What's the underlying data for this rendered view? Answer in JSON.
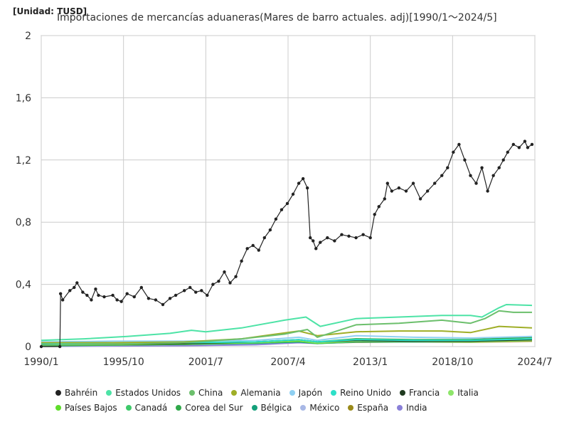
{
  "unit_label": "[Unidad: TUSD]",
  "title": "Importaciones de mercancías aduaneras(Mares de barro actuales. adj)[1990/1～2024/5]",
  "chart_data": {
    "type": "line",
    "title": "Importaciones de mercancías aduaneras(Mares de barro actuales. adj)[1990/1～2024/5]",
    "unit": "[Unidad: TUSD]",
    "ylim": [
      0,
      2
    ],
    "y_ticks": [
      "0",
      "0,4",
      "0,8",
      "1,2",
      "1,6",
      "2"
    ],
    "y_tick_values": [
      0,
      0.4,
      0.8,
      1.2,
      1.6,
      2
    ],
    "x_range": [
      1990.0,
      2024.5
    ],
    "x_ticks": [
      "1990/1",
      "1995/10",
      "2001/7",
      "2007/4",
      "2013/1",
      "2018/10",
      "2024/7"
    ],
    "x_tick_values": [
      1990.0,
      1995.75,
      2001.5,
      2007.25,
      2013.0,
      2018.75,
      2024.5
    ],
    "grid": true,
    "legend_position": "bottom",
    "series": [
      {
        "name": "Bahréin",
        "color": "#222222",
        "markers": true,
        "x": [
          1990.0,
          1991.3,
          1991.35,
          1991.5,
          1992.0,
          1992.3,
          1992.5,
          1992.9,
          1993.2,
          1993.5,
          1993.8,
          1994.0,
          1994.4,
          1995.0,
          1995.3,
          1995.6,
          1996.0,
          1996.5,
          1997.0,
          1997.5,
          1998.0,
          1998.5,
          1999.0,
          1999.4,
          2000.0,
          2000.4,
          2000.8,
          2001.2,
          2001.6,
          2002.0,
          2002.4,
          2002.8,
          2003.2,
          2003.6,
          2004.0,
          2004.4,
          2004.8,
          2005.2,
          2005.6,
          2006.0,
          2006.4,
          2006.8,
          2007.2,
          2007.6,
          2008.0,
          2008.3,
          2008.6,
          2008.8,
          2009.0,
          2009.2,
          2009.5,
          2010.0,
          2010.5,
          2011.0,
          2011.5,
          2012.0,
          2012.5,
          2013.0,
          2013.3,
          2013.6,
          2014.0,
          2014.2,
          2014.5,
          2015.0,
          2015.5,
          2016.0,
          2016.5,
          2017.0,
          2017.5,
          2018.0,
          2018.4,
          2018.8,
          2019.2,
          2019.6,
          2020.0,
          2020.4,
          2020.8,
          2021.2,
          2021.6,
          2022.0,
          2022.3,
          2022.6,
          2023.0,
          2023.4,
          2023.8,
          2024.0,
          2024.3
        ],
        "y": [
          0.0,
          0.0,
          0.34,
          0.3,
          0.36,
          0.38,
          0.41,
          0.35,
          0.33,
          0.3,
          0.37,
          0.33,
          0.32,
          0.33,
          0.3,
          0.29,
          0.34,
          0.32,
          0.38,
          0.31,
          0.3,
          0.27,
          0.31,
          0.33,
          0.36,
          0.38,
          0.35,
          0.36,
          0.33,
          0.4,
          0.42,
          0.48,
          0.41,
          0.45,
          0.55,
          0.63,
          0.65,
          0.62,
          0.7,
          0.75,
          0.82,
          0.88,
          0.92,
          0.98,
          1.05,
          1.08,
          1.02,
          0.7,
          0.68,
          0.63,
          0.67,
          0.7,
          0.68,
          0.72,
          0.71,
          0.7,
          0.72,
          0.7,
          0.85,
          0.9,
          0.95,
          1.05,
          1.0,
          1.02,
          1.0,
          1.05,
          0.95,
          1.0,
          1.05,
          1.1,
          1.15,
          1.25,
          1.3,
          1.2,
          1.1,
          1.05,
          1.15,
          1.0,
          1.1,
          1.15,
          1.2,
          1.25,
          1.3,
          1.28,
          1.32,
          1.28,
          1.3
        ]
      },
      {
        "name": "Estados Unidos",
        "color": "#4de3a6",
        "markers": false,
        "x": [
          1990.0,
          1993.0,
          1996.0,
          1999.0,
          2000.5,
          2001.5,
          2004.0,
          2007.0,
          2008.5,
          2009.5,
          2012.0,
          2015.0,
          2018.0,
          2020.0,
          2020.8,
          2022.0,
          2022.5,
          2024.3
        ],
        "y": [
          0.04,
          0.05,
          0.065,
          0.085,
          0.105,
          0.095,
          0.12,
          0.17,
          0.19,
          0.13,
          0.18,
          0.19,
          0.2,
          0.2,
          0.19,
          0.25,
          0.27,
          0.265
        ]
      },
      {
        "name": "China",
        "color": "#6cbf6c",
        "markers": false,
        "x": [
          1990.0,
          1995.0,
          2000.0,
          2004.0,
          2007.0,
          2008.6,
          2009.3,
          2012.0,
          2015.0,
          2018.0,
          2020.0,
          2021.0,
          2022.0,
          2023.0,
          2024.3
        ],
        "y": [
          0.01,
          0.015,
          0.025,
          0.05,
          0.08,
          0.11,
          0.06,
          0.14,
          0.15,
          0.17,
          0.15,
          0.18,
          0.23,
          0.22,
          0.22
        ]
      },
      {
        "name": "Alemania",
        "color": "#9fae27",
        "markers": false,
        "x": [
          1990.0,
          1995.0,
          2000.0,
          2004.0,
          2008.0,
          2009.3,
          2012.0,
          2015.0,
          2018.0,
          2020.0,
          2022.0,
          2024.3
        ],
        "y": [
          0.025,
          0.025,
          0.03,
          0.05,
          0.1,
          0.07,
          0.095,
          0.1,
          0.1,
          0.09,
          0.13,
          0.12
        ]
      },
      {
        "name": "Japón",
        "color": "#8fd0f2",
        "markers": false,
        "x": [
          1990.0,
          1995.0,
          2000.0,
          2005.0,
          2008.0,
          2009.3,
          2012.0,
          2016.0,
          2020.0,
          2024.3
        ],
        "y": [
          0.03,
          0.035,
          0.035,
          0.04,
          0.06,
          0.04,
          0.07,
          0.06,
          0.055,
          0.065
        ]
      },
      {
        "name": "Reino Unido",
        "color": "#2de0c8",
        "markers": false,
        "x": [
          1990.0,
          1995.0,
          2000.0,
          2005.0,
          2008.0,
          2009.3,
          2012.0,
          2016.0,
          2020.0,
          2024.3
        ],
        "y": [
          0.02,
          0.02,
          0.025,
          0.03,
          0.045,
          0.03,
          0.045,
          0.04,
          0.04,
          0.05
        ]
      },
      {
        "name": "Francia",
        "color": "#1f3a1f",
        "markers": false,
        "x": [
          1990.0,
          1995.0,
          2000.0,
          2005.0,
          2008.0,
          2009.3,
          2012.0,
          2016.0,
          2020.0,
          2024.3
        ],
        "y": [
          0.015,
          0.015,
          0.02,
          0.03,
          0.045,
          0.03,
          0.04,
          0.035,
          0.035,
          0.045
        ]
      },
      {
        "name": "Italia",
        "color": "#8ee66a",
        "markers": false,
        "x": [
          1990.0,
          1995.0,
          2000.0,
          2005.0,
          2008.0,
          2009.3,
          2012.0,
          2016.0,
          2020.0,
          2024.3
        ],
        "y": [
          0.015,
          0.015,
          0.02,
          0.028,
          0.04,
          0.025,
          0.035,
          0.033,
          0.03,
          0.04
        ]
      },
      {
        "name": "Países Bajos",
        "color": "#5fdd2a",
        "markers": false,
        "x": [
          1990.0,
          1995.0,
          2000.0,
          2005.0,
          2008.0,
          2009.3,
          2012.0,
          2016.0,
          2020.0,
          2024.3
        ],
        "y": [
          0.012,
          0.012,
          0.018,
          0.025,
          0.035,
          0.022,
          0.035,
          0.035,
          0.035,
          0.045
        ]
      },
      {
        "name": "Canadá",
        "color": "#3ec96a",
        "markers": false,
        "x": [
          1990.0,
          1995.0,
          2000.0,
          2005.0,
          2008.0,
          2009.3,
          2012.0,
          2016.0,
          2020.0,
          2024.3
        ],
        "y": [
          0.02,
          0.02,
          0.025,
          0.03,
          0.04,
          0.03,
          0.04,
          0.04,
          0.035,
          0.05
        ]
      },
      {
        "name": "Corea del Sur",
        "color": "#2fa84a",
        "markers": false,
        "x": [
          1990.0,
          1995.0,
          2000.0,
          2005.0,
          2008.0,
          2009.3,
          2012.0,
          2016.0,
          2020.0,
          2024.3
        ],
        "y": [
          0.005,
          0.01,
          0.015,
          0.025,
          0.04,
          0.03,
          0.05,
          0.045,
          0.045,
          0.06
        ]
      },
      {
        "name": "Bélgica",
        "color": "#14a07a",
        "markers": false,
        "x": [
          1990.0,
          1995.0,
          2000.0,
          2005.0,
          2008.0,
          2009.3,
          2012.0,
          2016.0,
          2020.0,
          2024.3
        ],
        "y": [
          0.01,
          0.01,
          0.015,
          0.022,
          0.03,
          0.02,
          0.03,
          0.03,
          0.03,
          0.04
        ]
      },
      {
        "name": "México",
        "color": "#a8b8e6",
        "markers": false,
        "x": [
          1990.0,
          1995.0,
          2000.0,
          2005.0,
          2008.0,
          2009.3,
          2012.0,
          2016.0,
          2020.0,
          2024.3
        ],
        "y": [
          0.005,
          0.008,
          0.015,
          0.02,
          0.03,
          0.02,
          0.035,
          0.04,
          0.04,
          0.06
        ]
      },
      {
        "name": "España",
        "color": "#9a8a1a",
        "markers": false,
        "x": [
          1990.0,
          1995.0,
          2000.0,
          2005.0,
          2008.0,
          2009.3,
          2012.0,
          2016.0,
          2020.0,
          2024.3
        ],
        "y": [
          0.008,
          0.01,
          0.015,
          0.025,
          0.035,
          0.022,
          0.028,
          0.03,
          0.028,
          0.035
        ]
      },
      {
        "name": "India",
        "color": "#8a80d8",
        "markers": false,
        "x": [
          1990.0,
          1995.0,
          2000.0,
          2005.0,
          2008.0,
          2009.3,
          2012.0,
          2016.0,
          2020.0,
          2024.3
        ],
        "y": [
          0.002,
          0.004,
          0.006,
          0.012,
          0.025,
          0.02,
          0.04,
          0.035,
          0.035,
          0.05
        ]
      }
    ]
  }
}
